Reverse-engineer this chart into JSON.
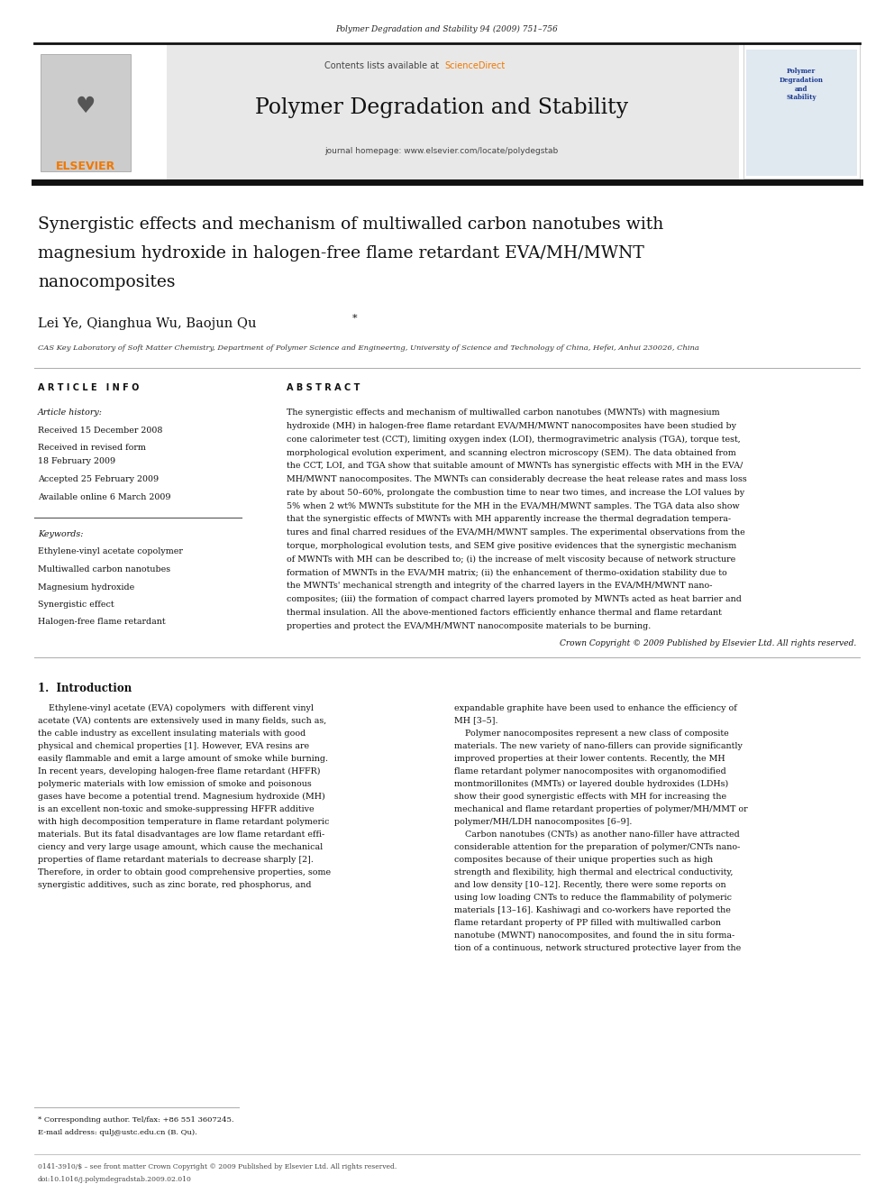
{
  "page_width": 9.92,
  "page_height": 13.23,
  "bg_color": "#ffffff",
  "journal_ref": "Polymer Degradation and Stability 94 (2009) 751–756",
  "contents_text": "Contents lists available at ",
  "sciencedirect_text": "ScienceDirect",
  "journal_title": "Polymer Degradation and Stability",
  "journal_homepage": "journal homepage: www.elsevier.com/locate/polydegstab",
  "article_title_line1": "Synergistic effects and mechanism of multiwalled carbon nanotubes with",
  "article_title_line2": "magnesium hydroxide in halogen-free flame retardant EVA/MH/MWNT",
  "article_title_line3": "nanocomposites",
  "authors_main": "Lei Ye, Qianghua Wu, Baojun Qu",
  "affiliation": "CAS Key Laboratory of Soft Matter Chemistry, Department of Polymer Science and Engineering, University of Science and Technology of China, Hefei, Anhui 230026, China",
  "article_info_header": "A R T I C L E   I N F O",
  "abstract_header": "A B S T R A C T",
  "article_history_label": "Article history:",
  "received1": "Received 15 December 2008",
  "received2": "Received in revised form",
  "date2": "18 February 2009",
  "accepted": "Accepted 25 February 2009",
  "available": "Available online 6 March 2009",
  "keywords_label": "Keywords:",
  "keywords": [
    "Ethylene-vinyl acetate copolymer",
    "Multiwalled carbon nanotubes",
    "Magnesium hydroxide",
    "Synergistic effect",
    "Halogen-free flame retardant"
  ],
  "abstract_text": "The synergistic effects and mechanism of multiwalled carbon nanotubes (MWNTs) with magnesium hydroxide (MH) in halogen-free flame retardant EVA/MH/MWNT nanocomposites have been studied by cone calorimeter test (CCT), limiting oxygen index (LOI), thermogravimetric analysis (TGA), torque test, morphological evolution experiment, and scanning electron microscopy (SEM). The data obtained from the CCT, LOI, and TGA show that suitable amount of MWNTs has synergistic effects with MH in the EVA/MH/MWNT nanocomposites. The MWNTs can considerably decrease the heat release rates and mass loss rate by about 50–60%, prolongate the combustion time to near two times, and increase the LOI values by 5% when 2 wt% MWNTs substitute for the MH in the EVA/MH/MWNT samples. The TGA data also show that the synergistic effects of MWNTs with MH apparently increase the thermal degradation temperatures and final charred residues of the EVA/MH/MWNT samples. The experimental observations from the torque, morphological evolution tests, and SEM give positive evidences that the synergistic mechanism of MWNTs with MH can be described to; (i) the increase of melt viscosity because of network structure formation of MWNTs in the EVA/MH matrix; (ii) the enhancement of thermo-oxidation stability due to the MWNTs' mechanical strength and integrity of the charred layers in the EVA/MH/MWNT nanocomposites; (iii) the formation of compact charred layers promoted by MWNTs acted as heat barrier and thermal insulation. All the above-mentioned factors efficiently enhance thermal and flame retardant properties and protect the EVA/MH/MWNT nanocomposite materials to be burning.",
  "copyright": "Crown Copyright © 2009 Published by Elsevier Ltd. All rights reserved.",
  "intro_header": "1.  Introduction",
  "intro_col1_lines": [
    "    Ethylene-vinyl acetate (EVA) copolymers  with different vinyl",
    "acetate (VA) contents are extensively used in many fields, such as,",
    "the cable industry as excellent insulating materials with good",
    "physical and chemical properties [1]. However, EVA resins are",
    "easily flammable and emit a large amount of smoke while burning.",
    "In recent years, developing halogen-free flame retardant (HFFR)",
    "polymeric materials with low emission of smoke and poisonous",
    "gases have become a potential trend. Magnesium hydroxide (MH)",
    "is an excellent non-toxic and smoke-suppressing HFFR additive",
    "with high decomposition temperature in flame retardant polymeric",
    "materials. But its fatal disadvantages are low flame retardant effi-",
    "ciency and very large usage amount, which cause the mechanical",
    "properties of flame retardant materials to decrease sharply [2].",
    "Therefore, in order to obtain good comprehensive properties, some",
    "synergistic additives, such as zinc borate, red phosphorus, and"
  ],
  "intro_col2_lines": [
    "expandable graphite have been used to enhance the efficiency of",
    "MH [3–5].",
    "    Polymer nanocomposites represent a new class of composite",
    "materials. The new variety of nano-fillers can provide significantly",
    "improved properties at their lower contents. Recently, the MH",
    "flame retardant polymer nanocomposites with organomodified",
    "montmorillonites (MMTs) or layered double hydroxides (LDHs)",
    "show their good synergistic effects with MH for increasing the",
    "mechanical and flame retardant properties of polymer/MH/MMT or",
    "polymer/MH/LDH nanocomposites [6–9].",
    "    Carbon nanotubes (CNTs) as another nano-filler have attracted",
    "considerable attention for the preparation of polymer/CNTs nano-",
    "composites because of their unique properties such as high",
    "strength and flexibility, high thermal and electrical conductivity,",
    "and low density [10–12]. Recently, there were some reports on",
    "using low loading CNTs to reduce the flammability of polymeric",
    "materials [13–16]. Kashiwagi and co-workers have reported the",
    "flame retardant property of PP filled with multiwalled carbon",
    "nanotube (MWNT) nanocomposites, and found the in situ forma-",
    "tion of a continuous, network structured protective layer from the"
  ],
  "footnote_star": "* Corresponding author. Tel/fax: +86 551 3607245.",
  "footnote_email": "E-mail address: qulj@ustc.edu.cn (B. Qu).",
  "bottom_issn": "0141-3910/$ – see front matter Crown Copyright © 2009 Published by Elsevier Ltd. All rights reserved.",
  "bottom_doi": "doi:10.1016/j.polymdegradstab.2009.02.010",
  "orange_color": "#F07800",
  "sciencedirect_orange": "#F07800",
  "dark_blue": "#1a3a8f",
  "header_bg": "#e8e8e8",
  "black_bar": "#000000",
  "abs_lines": [
    "The synergistic effects and mechanism of multiwalled carbon nanotubes (MWNTs) with magnesium",
    "hydroxide (MH) in halogen-free flame retardant EVA/MH/MWNT nanocomposites have been studied by",
    "cone calorimeter test (CCT), limiting oxygen index (LOI), thermogravimetric analysis (TGA), torque test,",
    "morphological evolution experiment, and scanning electron microscopy (SEM). The data obtained from",
    "the CCT, LOI, and TGA show that suitable amount of MWNTs has synergistic effects with MH in the EVA/",
    "MH/MWNT nanocomposites. The MWNTs can considerably decrease the heat release rates and mass loss",
    "rate by about 50–60%, prolongate the combustion time to near two times, and increase the LOI values by",
    "5% when 2 wt% MWNTs substitute for the MH in the EVA/MH/MWNT samples. The TGA data also show",
    "that the synergistic effects of MWNTs with MH apparently increase the thermal degradation tempera-",
    "tures and final charred residues of the EVA/MH/MWNT samples. The experimental observations from the",
    "torque, morphological evolution tests, and SEM give positive evidences that the synergistic mechanism",
    "of MWNTs with MH can be described to; (i) the increase of melt viscosity because of network structure",
    "formation of MWNTs in the EVA/MH matrix; (ii) the enhancement of thermo-oxidation stability due to",
    "the MWNTs' mechanical strength and integrity of the charred layers in the EVA/MH/MWNT nano-",
    "composites; (iii) the formation of compact charred layers promoted by MWNTs acted as heat barrier and",
    "thermal insulation. All the above-mentioned factors efficiently enhance thermal and flame retardant",
    "properties and protect the EVA/MH/MWNT nanocomposite materials to be burning."
  ]
}
